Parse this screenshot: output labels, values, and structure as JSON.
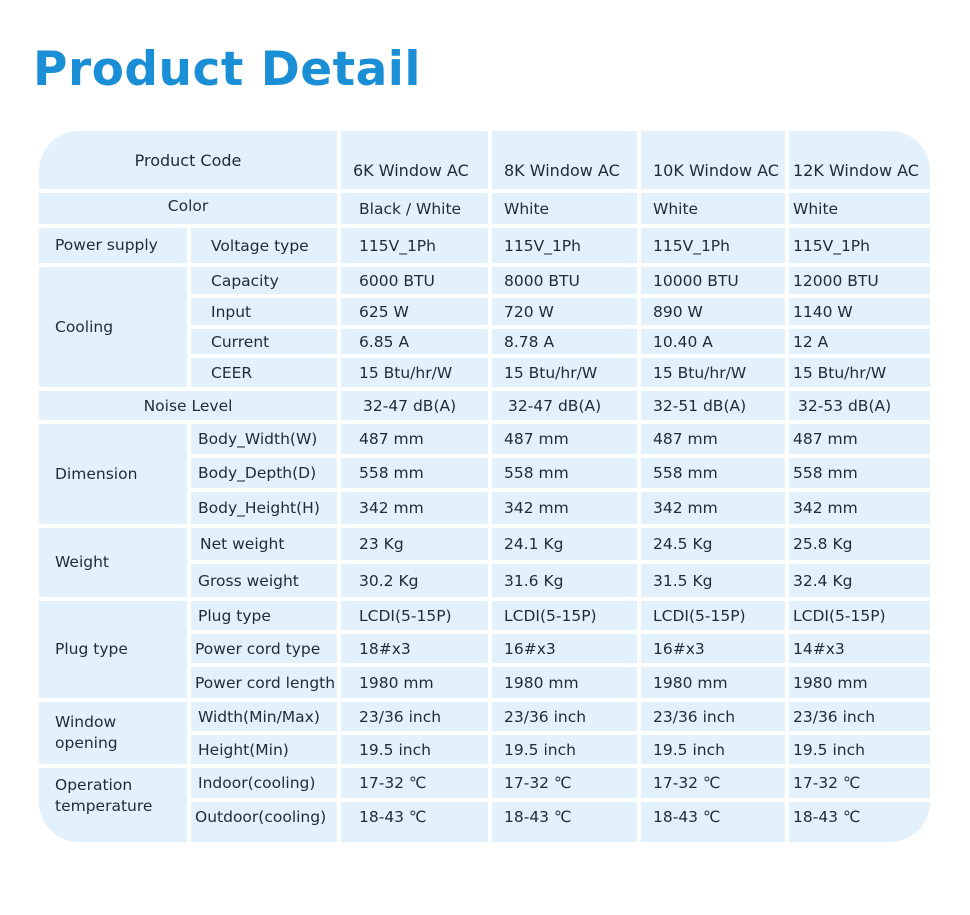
{
  "title": "Product Detail",
  "header": {
    "label": "Product Code",
    "models": [
      "6K Window AC",
      "8K Window AC",
      "10K Window AC",
      "12K Window AC"
    ]
  },
  "color_row": {
    "label": "Color",
    "values": [
      "Black / White",
      "White",
      "White",
      "White"
    ]
  },
  "power_supply": {
    "label": "Power supply",
    "sub": "Voltage type",
    "values": [
      "115V_1Ph",
      "115V_1Ph",
      "115V_1Ph",
      "115V_1Ph"
    ]
  },
  "cooling": {
    "label": "Cooling",
    "rows": [
      {
        "label": "Capacity",
        "values": [
          "6000 BTU",
          "8000 BTU",
          "10000 BTU",
          "12000 BTU"
        ]
      },
      {
        "label": "Input",
        "values": [
          "625 W",
          "720 W",
          "890 W",
          "1140 W"
        ]
      },
      {
        "label": "Current",
        "values": [
          "6.85 A",
          "8.78 A",
          "10.40 A",
          "12 A"
        ]
      },
      {
        "label": "CEER",
        "values": [
          "15 Btu/hr/W",
          "15 Btu/hr/W",
          "15 Btu/hr/W",
          "15 Btu/hr/W"
        ]
      }
    ]
  },
  "noise": {
    "label": "Noise Level",
    "values": [
      "32-47 dB(A)",
      "32-47 dB(A)",
      "32-51 dB(A)",
      "32-53 dB(A)"
    ]
  },
  "dimension": {
    "label": "Dimension",
    "rows": [
      {
        "label": "Body_Width(W)",
        "values": [
          "487 mm",
          "487 mm",
          "487 mm",
          "487 mm"
        ]
      },
      {
        "label": "Body_Depth(D)",
        "values": [
          "558 mm",
          "558 mm",
          "558 mm",
          "558 mm"
        ]
      },
      {
        "label": "Body_Height(H)",
        "values": [
          "342 mm",
          "342 mm",
          "342 mm",
          "342 mm"
        ]
      }
    ]
  },
  "weight": {
    "label": "Weight",
    "rows": [
      {
        "label": "Net weight",
        "values": [
          "23 Kg",
          "24.1 Kg",
          "24.5 Kg",
          "25.8 Kg"
        ]
      },
      {
        "label": "Gross weight",
        "values": [
          "30.2 Kg",
          "31.6 Kg",
          "31.5 Kg",
          "32.4 Kg"
        ]
      }
    ]
  },
  "plug": {
    "label": "Plug type",
    "rows": [
      {
        "label": "Plug type",
        "values": [
          "LCDI(5-15P)",
          "LCDI(5-15P)",
          "LCDI(5-15P)",
          "LCDI(5-15P)"
        ]
      },
      {
        "label": "Power cord type",
        "values": [
          "18#x3",
          "16#x3",
          "16#x3",
          "14#x3"
        ]
      },
      {
        "label": "Power cord length",
        "values": [
          "1980 mm",
          "1980 mm",
          "1980 mm",
          "1980 mm"
        ]
      }
    ]
  },
  "window": {
    "label_line1": "Window",
    "label_line2": "opening",
    "rows": [
      {
        "label": "Width(Min/Max)",
        "values": [
          "23/36 inch",
          "23/36 inch",
          "23/36 inch",
          "23/36 inch"
        ]
      },
      {
        "label": "Height(Min)",
        "values": [
          "19.5 inch",
          "19.5 inch",
          "19.5 inch",
          "19.5 inch"
        ]
      }
    ]
  },
  "operation": {
    "label_line1": "Operation",
    "label_line2": "temperature",
    "rows": [
      {
        "label": "Indoor(cooling)",
        "values": [
          "17-32 ℃",
          "17-32 ℃",
          "17-32 ℃",
          "17-32 ℃"
        ]
      },
      {
        "label": "Outdoor(cooling)",
        "values": [
          "18-43 ℃",
          "18-43 ℃",
          "18-43 ℃",
          "18-43 ℃"
        ]
      }
    ]
  }
}
